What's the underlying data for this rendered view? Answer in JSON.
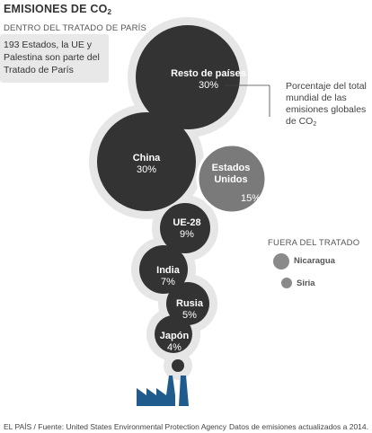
{
  "title": {
    "main": "EMISIONES DE CO",
    "sub": "2"
  },
  "inside_label": "DENTRO DEL TRATADO DE PARÍS",
  "note": "193 Estados, la UE y Palestina son parte del Tratado de París",
  "legend": {
    "text": "Porcentaje del total mundial de las emisiones globales de CO",
    "sub": "2"
  },
  "outside_label": "FUERA DEL TRATADO",
  "colors": {
    "inside": "#333333",
    "usa": "#7a7a7a",
    "outside": "#8a8a8a",
    "smoke": "#e6e6e6",
    "factory": "#1f5b8c"
  },
  "chart_data": {
    "type": "bubble",
    "inside_treaty": [
      {
        "name": "Resto de países",
        "pct": 30
      },
      {
        "name": "China",
        "pct": 30
      },
      {
        "name": "UE-28",
        "pct": 9
      },
      {
        "name": "India",
        "pct": 7
      },
      {
        "name": "Rusia",
        "pct": 5
      },
      {
        "name": "Japón",
        "pct": 4
      }
    ],
    "outside_treaty": [
      {
        "name": "Estados Unidos",
        "name_lines": [
          "Estados",
          "Unidos"
        ],
        "pct": 15
      },
      {
        "name": "Nicaragua"
      },
      {
        "name": "Siria"
      }
    ]
  },
  "footer": {
    "source": "EL PAÍS / Fuente: United States Environmental Protection Agency",
    "note": "Datos de emisiones actualizados a 2014."
  }
}
